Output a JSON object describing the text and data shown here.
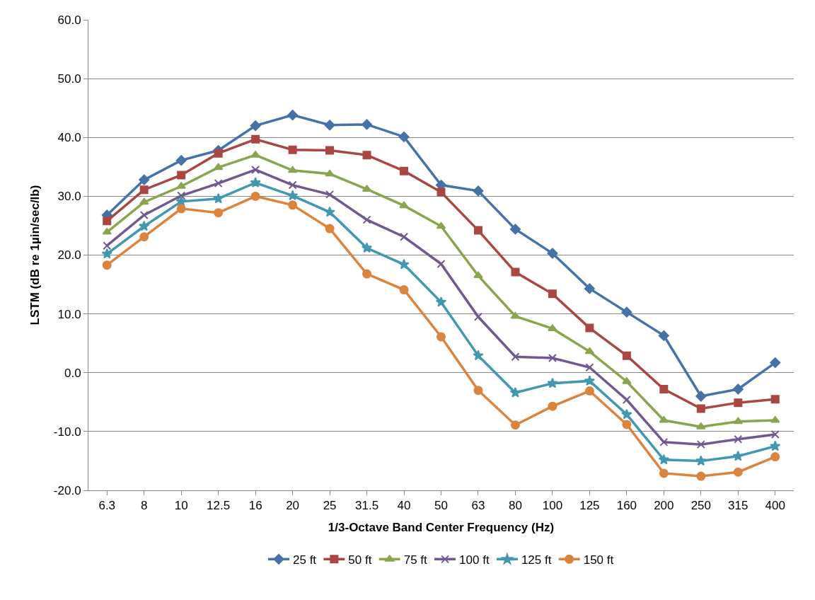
{
  "chart_data": {
    "type": "line",
    "xlabel": "1/3-Octave Band Center Frequency (Hz)",
    "ylabel": "LSTM (dB re 1µin/sec/lb)",
    "categories": [
      "6.3",
      "8",
      "10",
      "12.5",
      "16",
      "20",
      "25",
      "31.5",
      "40",
      "50",
      "63",
      "80",
      "100",
      "125",
      "160",
      "200",
      "250",
      "315",
      "400"
    ],
    "series": [
      {
        "name": "25 ft",
        "color": "#4572a7",
        "marker": "diamond",
        "values": [
          26.8,
          32.8,
          36.1,
          37.8,
          42.0,
          43.8,
          42.1,
          42.2,
          40.1,
          31.9,
          30.9,
          24.4,
          20.3,
          14.3,
          10.3,
          6.3,
          -4.0,
          -2.8,
          1.7
        ]
      },
      {
        "name": "50 ft",
        "color": "#aa4643",
        "marker": "square",
        "values": [
          25.8,
          31.1,
          33.6,
          37.3,
          39.7,
          37.9,
          37.8,
          37.0,
          34.3,
          30.7,
          24.2,
          17.1,
          13.4,
          7.6,
          2.9,
          -2.8,
          -6.1,
          -5.1,
          -4.5
        ]
      },
      {
        "name": "75 ft",
        "color": "#89a54e",
        "marker": "triangle",
        "values": [
          23.9,
          29.0,
          31.7,
          34.9,
          37.0,
          34.4,
          33.8,
          31.2,
          28.4,
          24.9,
          16.5,
          9.6,
          7.5,
          3.6,
          -1.5,
          -8.1,
          -9.2,
          -8.3,
          -8.1
        ]
      },
      {
        "name": "100 ft",
        "color": "#71588f",
        "marker": "cross",
        "values": [
          21.6,
          26.8,
          30.1,
          32.2,
          34.5,
          31.9,
          30.3,
          26.0,
          23.1,
          18.5,
          9.5,
          2.7,
          2.5,
          0.9,
          -4.6,
          -11.8,
          -12.2,
          -11.3,
          -10.5
        ]
      },
      {
        "name": "125 ft",
        "color": "#4198af",
        "marker": "star",
        "values": [
          20.2,
          24.9,
          29.1,
          29.6,
          32.3,
          30.1,
          27.3,
          21.2,
          18.4,
          12.0,
          2.9,
          -3.4,
          -1.8,
          -1.4,
          -7.1,
          -14.8,
          -15.0,
          -14.2,
          -12.5
        ]
      },
      {
        "name": "150 ft",
        "color": "#db843d",
        "marker": "circle",
        "values": [
          18.3,
          23.1,
          27.9,
          27.2,
          30.0,
          28.5,
          24.5,
          16.8,
          14.1,
          6.1,
          -3.0,
          -8.9,
          -5.7,
          -3.1,
          -8.8,
          -17.1,
          -17.6,
          -16.9,
          -14.3
        ]
      }
    ],
    "ylim": [
      -20,
      60
    ],
    "yticks": [
      {
        "value": -20,
        "label": "-20.0"
      },
      {
        "value": -10,
        "label": "-10.0"
      },
      {
        "value": 0,
        "label": "0.0"
      },
      {
        "value": 10,
        "label": "10.0"
      },
      {
        "value": 20,
        "label": "20.0"
      },
      {
        "value": 30,
        "label": "30.0"
      },
      {
        "value": 40,
        "label": "40.0"
      },
      {
        "value": 50,
        "label": "50.0"
      },
      {
        "value": 60,
        "label": "60.0"
      }
    ],
    "grid": "y",
    "legend": "bottom",
    "line_style": "solid"
  }
}
